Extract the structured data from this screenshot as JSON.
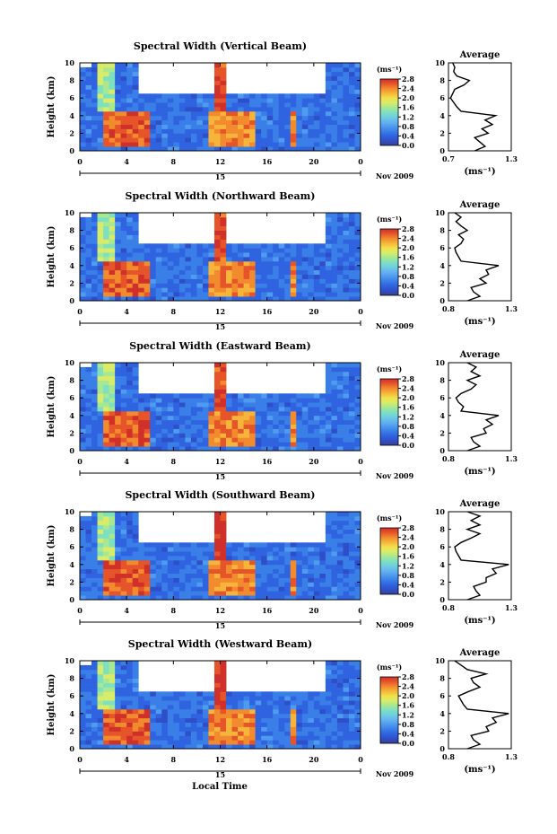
{
  "colors": {
    "scale": [
      "#3a3f8c",
      "#2f4fc8",
      "#2f63e0",
      "#3a7fe8",
      "#4f9bef",
      "#66b4ef",
      "#6fcfe0",
      "#7fe0c0",
      "#a8e890",
      "#d8ec6a",
      "#f3e04a",
      "#f6b43a",
      "#f28a2e",
      "#e6552a",
      "#d0302a"
    ]
  },
  "x_axis_label": "Local Time",
  "x_ticks": [
    "0",
    "4",
    "8",
    "12",
    "16",
    "20",
    "0"
  ],
  "day_label": "15",
  "date_label": "Nov 2009",
  "y_ticks": [
    "0",
    "2",
    "4",
    "6",
    "8",
    "10"
  ],
  "colorbar_unit": "(ms⁻¹)",
  "colorbar_ticks": [
    "0.0",
    "0.4",
    "0.8",
    "1.2",
    "1.6",
    "2.0",
    "2.4",
    "2.8"
  ],
  "panels": [
    {
      "title": "Spectral Width (Vertical Beam)",
      "ylabel": "Height (km)",
      "avg_title": "Average",
      "avg_unit": "(ms⁻¹)",
      "avg_ticks": [
        "0.7",
        "1.3"
      ]
    },
    {
      "title": "Spectral Width (Northward Beam)",
      "ylabel": "Height (km)",
      "avg_title": "Average",
      "avg_unit": "(ms⁻¹)",
      "avg_ticks": [
        "0.8",
        "1.3"
      ]
    },
    {
      "title": "Spectral Width (Eastward Beam)",
      "ylabel": "Height (km)",
      "avg_title": "Average",
      "avg_unit": "(ms⁻¹)",
      "avg_ticks": [
        "0.8",
        "1.3"
      ]
    },
    {
      "title": "Spectral Width (Southward Beam)",
      "ylabel": "Height (km)",
      "avg_title": "Average",
      "avg_unit": "(ms⁻¹)",
      "avg_ticks": [
        "0.8",
        "1.3"
      ]
    },
    {
      "title": "Spectral Width (Westward Beam)",
      "ylabel": "Height (km)",
      "avg_title": "Average",
      "avg_unit": "(ms⁻¹)",
      "avg_ticks": [
        "0.8",
        "1.3"
      ]
    }
  ],
  "chart_data": {
    "type": "heatmap",
    "xlabel": "Local Time",
    "ylabel": "Height (km)",
    "xlim": [
      0,
      24
    ],
    "ylim": [
      0,
      10
    ],
    "clim": [
      0.0,
      2.8
    ],
    "regions": [
      {
        "x0": 2,
        "x1": 6,
        "y0": 0.3,
        "y1": 4.5,
        "value": 2.6
      },
      {
        "x0": 1.5,
        "x1": 3,
        "y0": 4.5,
        "y1": 10,
        "value": 1.6
      },
      {
        "x0": 11.5,
        "x1": 12.5,
        "y0": 0.3,
        "y1": 10,
        "value": 2.7
      },
      {
        "x0": 11,
        "x1": 15,
        "y0": 0.3,
        "y1": 4.5,
        "value": 2.4
      },
      {
        "x0": 18,
        "x1": 18.6,
        "y0": 0.3,
        "y1": 4.5,
        "value": 2.4
      }
    ],
    "background_value": 0.5,
    "avg_heights": [
      0,
      0.5,
      1,
      1.5,
      2,
      2.5,
      3,
      3.5,
      4,
      4.5,
      5,
      5.5,
      6,
      6.5,
      7,
      7.5,
      8,
      8.5,
      9,
      9.5,
      10
    ],
    "series": [
      {
        "name": "Vertical Beam",
        "xlim": [
          0.7,
          1.3
        ],
        "values": [
          0.95,
          1.05,
          1.0,
          0.95,
          1.08,
          1.02,
          1.12,
          1.05,
          1.15,
          0.82,
          0.78,
          0.75,
          0.72,
          0.74,
          0.76,
          0.85,
          0.9,
          0.78,
          0.75,
          0.76,
          0.74
        ]
      },
      {
        "name": "Northward Beam",
        "xlim": [
          0.8,
          1.3
        ],
        "values": [
          0.95,
          1.05,
          1.0,
          0.98,
          1.1,
          1.05,
          1.12,
          1.1,
          1.2,
          0.9,
          0.88,
          0.86,
          0.85,
          0.9,
          0.92,
          0.88,
          0.95,
          0.9,
          0.86,
          0.9,
          0.85
        ]
      },
      {
        "name": "Eastward Beam",
        "xlim": [
          0.8,
          1.3
        ],
        "values": [
          0.95,
          1.05,
          1.0,
          0.98,
          1.1,
          1.08,
          1.15,
          1.1,
          1.2,
          0.9,
          0.92,
          0.88,
          0.86,
          0.9,
          0.98,
          1.02,
          0.95,
          1.05,
          0.98,
          1.02,
          0.95
        ]
      },
      {
        "name": "Southward Beam",
        "xlim": [
          0.8,
          1.3
        ],
        "values": [
          0.95,
          1.05,
          1.02,
          1.0,
          1.1,
          1.1,
          1.18,
          1.15,
          1.28,
          0.9,
          0.88,
          0.86,
          0.85,
          0.9,
          0.98,
          1.05,
          0.95,
          1.05,
          0.98,
          1.05,
          0.95
        ]
      },
      {
        "name": "Westward Beam",
        "xlim": [
          0.8,
          1.3
        ],
        "values": [
          0.95,
          1.05,
          1.0,
          0.98,
          1.12,
          1.1,
          1.18,
          1.15,
          1.28,
          0.95,
          0.92,
          0.9,
          0.88,
          0.96,
          1.05,
          1.0,
          0.98,
          1.1,
          0.95,
          0.9,
          0.85
        ]
      }
    ]
  }
}
